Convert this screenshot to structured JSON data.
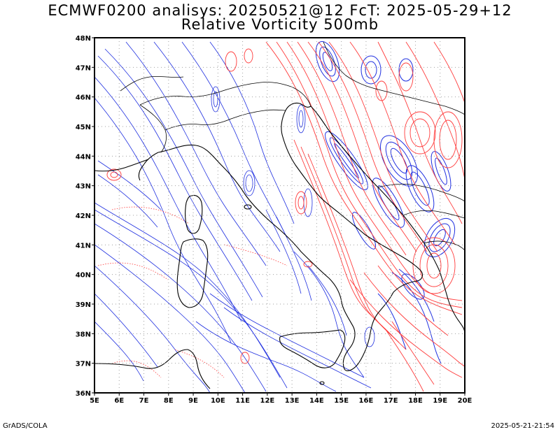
{
  "title_line1": "ECMWF0200 analisys: 20250521@12 FcT: 2025-05-29+12",
  "title_line2": "Relative Vorticity 500mb",
  "credit": "GrADS/COLA",
  "timestamp": "2025-05-21-21:54",
  "colors": {
    "positive_vorticity": "#ff3b3b",
    "negative_vorticity": "#2030e0",
    "coastline": "#000000",
    "grid": "#a0a0a0"
  },
  "map": {
    "lon_range": [
      5,
      20
    ],
    "lat_range": [
      36,
      48
    ],
    "x_ticks": [
      "5E",
      "6E",
      "7E",
      "8E",
      "9E",
      "10E",
      "11E",
      "12E",
      "13E",
      "14E",
      "15E",
      "16E",
      "17E",
      "18E",
      "19E",
      "20E"
    ],
    "y_ticks": [
      "48N",
      "47N",
      "46N",
      "45N",
      "44N",
      "43N",
      "42N",
      "41N",
      "40N",
      "39N",
      "38N",
      "37N",
      "36N"
    ],
    "grid": true
  }
}
